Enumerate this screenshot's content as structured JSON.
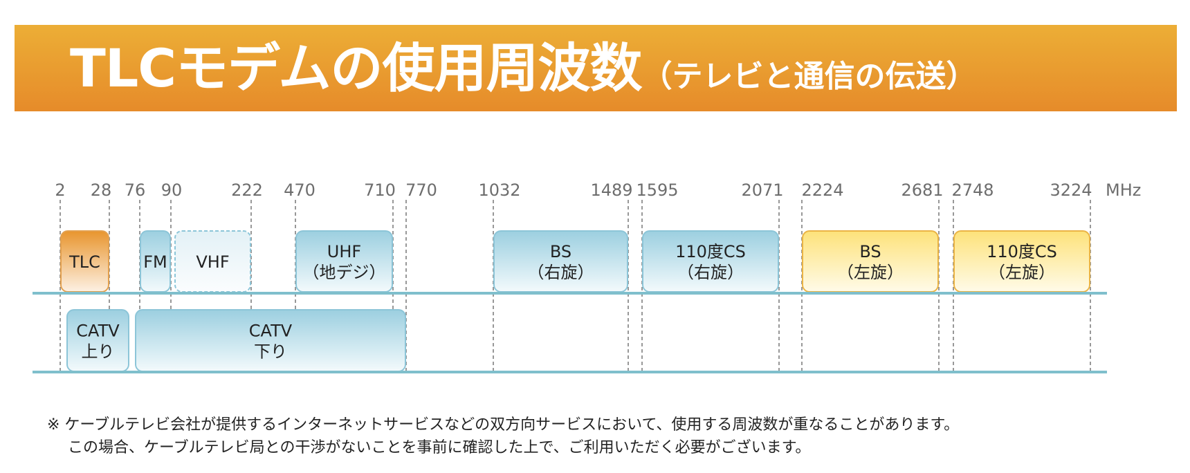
{
  "title": {
    "main": "TLCモデムの使用周波数",
    "sub": "（テレビと通信の伝送）"
  },
  "axis": {
    "unit": "MHz",
    "ticks": [
      "2",
      "28",
      "76",
      "90",
      "222",
      "470",
      "710",
      "770",
      "1032",
      "1489",
      "1595",
      "2071",
      "2224",
      "2681",
      "2748",
      "3224"
    ]
  },
  "bands": {
    "upper": [
      {
        "label": "TLC",
        "start": "2",
        "end": "28",
        "style": "orange"
      },
      {
        "label": "FM",
        "start": "76",
        "end": "90",
        "style": "blue"
      },
      {
        "label": "VHF",
        "start": "90",
        "end": "222",
        "style": "blue-pale"
      },
      {
        "label": "UHF",
        "label2": "（地デジ）",
        "start": "470",
        "end": "710",
        "style": "blue"
      },
      {
        "label": "BS",
        "label2": "（右旋）",
        "start": "1032",
        "end": "1489",
        "style": "blue"
      },
      {
        "label": "110度CS",
        "label2": "（右旋）",
        "start": "1595",
        "end": "2071",
        "style": "blue"
      },
      {
        "label": "BS",
        "label2": "（左旋）",
        "start": "2224",
        "end": "2681",
        "style": "yellow"
      },
      {
        "label": "110度CS",
        "label2": "（左旋）",
        "start": "2748",
        "end": "3224",
        "style": "yellow"
      }
    ],
    "lower": [
      {
        "label": "CATV",
        "label2": "上り",
        "style": "blue"
      },
      {
        "label": "CATV",
        "label2": "下り",
        "style": "blue"
      }
    ]
  },
  "colors": {
    "banner_top": "#ecae36",
    "banner_bottom": "#e68b2a",
    "baseline": "#7fbfcc",
    "blue_top": "#9ccfe0",
    "blue_border": "#8cc5d8",
    "orange_top": "#e8952e",
    "yellow_top": "#fde27a",
    "yellow_border": "#ebb445"
  },
  "footnote": {
    "line1": "※ ケーブルテレビ会社が提供するインターネットサービスなどの双方向サービスにおいて、使用する周波数が重なることがあります。",
    "line2": "この場合、ケーブルテレビ局との干渉がないことを事前に確認した上で、ご利用いただく必要がございます。"
  }
}
